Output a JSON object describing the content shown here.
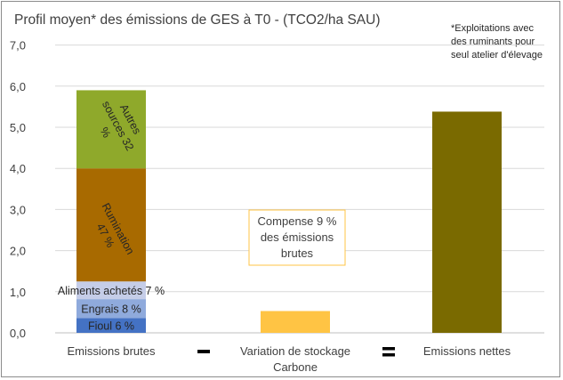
{
  "chart_data": {
    "type": "bar",
    "stacked": true,
    "title": "Profil moyen* des émissions de GES à T0 - (TCO2/ha SAU)",
    "note": [
      "*Exploitations avec",
      "des ruminants pour",
      "seul atelier d'élevage"
    ],
    "ylim": [
      0,
      7
    ],
    "yticks": [
      "0,0",
      "1,0",
      "2,0",
      "3,0",
      "4,0",
      "5,0",
      "6,0",
      "7,0"
    ],
    "grid": true,
    "categories": [
      {
        "lines": [
          "Emissions brutes"
        ]
      },
      {
        "lines": [
          "Variation de stockage",
          "Carbone"
        ]
      },
      {
        "lines": [
          "Emissions nettes"
        ]
      }
    ],
    "operators": [
      "-",
      "="
    ],
    "bars": [
      {
        "category_index": 0,
        "segments": [
          {
            "label": "Fioul 6 %",
            "value": 0.36,
            "color": "#4472c4"
          },
          {
            "label": "Engrais 8 %",
            "value": 0.46,
            "color": "#8faadc"
          },
          {
            "label": "Aliments achetés 7 %",
            "value": 0.43,
            "color": "#c5cde8"
          },
          {
            "label": "Rumination 47 %",
            "value": 2.75,
            "color": "#a86a00"
          },
          {
            "label": "Autres sources 32 %",
            "value": 1.9,
            "color": "#8fa92b"
          }
        ]
      },
      {
        "category_index": 1,
        "segments": [
          {
            "label": "",
            "value": 0.53,
            "color": "#ffc444"
          }
        ]
      },
      {
        "category_index": 2,
        "segments": [
          {
            "label": "",
            "value": 5.38,
            "color": "#7a6a00"
          }
        ]
      }
    ],
    "annotation": {
      "lines": [
        "Compense 9 %",
        "des émissions",
        "brutes"
      ],
      "border_color": "#ffc444"
    }
  }
}
